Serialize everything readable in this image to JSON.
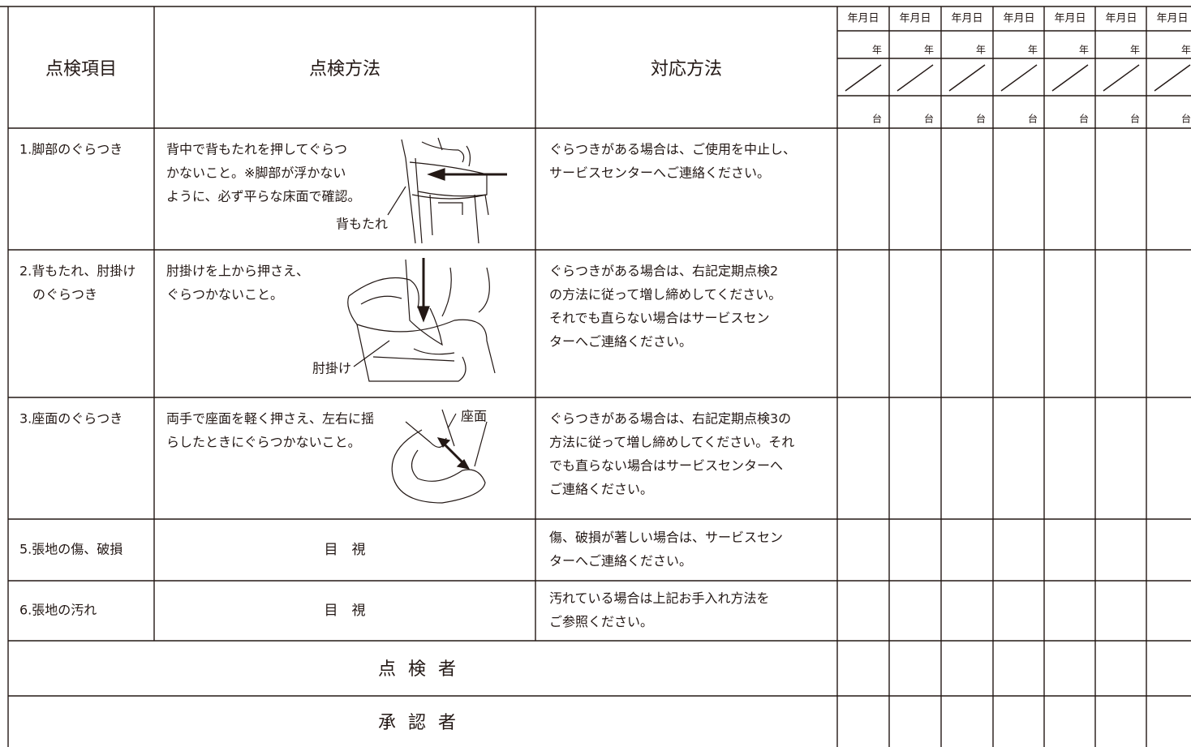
{
  "header": {
    "item": "点検項目",
    "method": "点検方法",
    "response": "対応方法",
    "date_columns": [
      {
        "date": "年月日",
        "year": "年",
        "unit": "台"
      },
      {
        "date": "年月日",
        "year": "年",
        "unit": "台"
      },
      {
        "date": "年月日",
        "year": "年",
        "unit": "台"
      },
      {
        "date": "年月日",
        "year": "年",
        "unit": "台"
      },
      {
        "date": "年月日",
        "year": "年",
        "unit": "台"
      },
      {
        "date": "年月日",
        "year": "年",
        "unit": "台"
      },
      {
        "date": "年月日",
        "year": "年",
        "unit": "台"
      }
    ]
  },
  "rows": [
    {
      "item": [
        "1.脚部のぐらつき"
      ],
      "method": [
        "背中で背もたれを押してぐらつ",
        "かないこと。※脚部が浮かない",
        "ように、必ず平らな床面で確認。"
      ],
      "illustration_label": "背もたれ",
      "response": [
        "ぐらつきがある場合は、ご使用を中止し、",
        "サービスセンターへご連絡ください。"
      ]
    },
    {
      "item": [
        "2.背もたれ、肘掛け",
        "のぐらつき"
      ],
      "method": [
        "肘掛けを上から押さえ、",
        "ぐらつかないこと。"
      ],
      "illustration_label": "肘掛け",
      "response": [
        "ぐらつきがある場合は、右記定期点検2",
        "の方法に従って増し締めしてください。",
        "それでも直らない場合はサービスセン",
        "ターへご連絡ください。"
      ]
    },
    {
      "item": [
        "3.座面のぐらつき"
      ],
      "method": [
        "両手で座面を軽く押さえ、左右に揺",
        "らしたときにぐらつかないこと。"
      ],
      "illustration_label": "座面",
      "response": [
        "ぐらつきがある場合は、右記定期点検3の",
        "方法に従って増し締めしてください。それ",
        "でも直らない場合はサービスセンターへ",
        "ご連絡ください。"
      ]
    },
    {
      "item": [
        "5.張地の傷、破損"
      ],
      "method": [
        "目　視"
      ],
      "response": [
        "傷、破損が著しい場合は、サービスセン",
        "ターへご連絡ください。"
      ]
    },
    {
      "item": [
        "6.張地の汚れ"
      ],
      "method": [
        "目　視"
      ],
      "response": [
        "汚れている場合は上記お手入れ方法を",
        "ご参照ください。"
      ]
    }
  ],
  "footer": {
    "inspector": "点 検 者",
    "approver": "承 認 者"
  }
}
